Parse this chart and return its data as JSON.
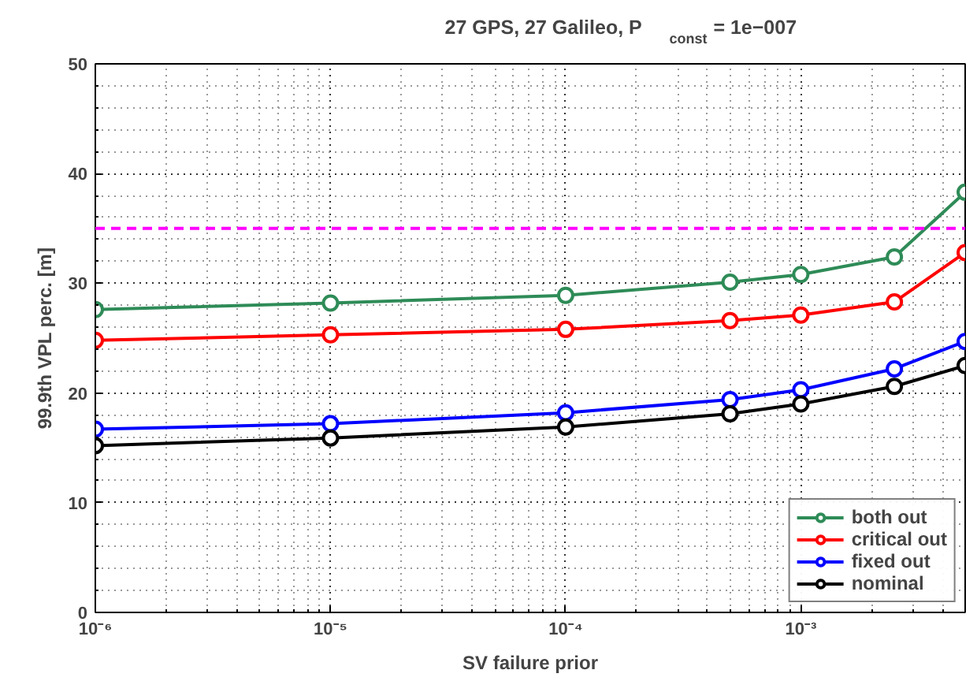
{
  "chart_data": {
    "type": "line",
    "title": "27 GPS, 27 Galileo,  P$_{const}$= 1e−007",
    "xlabel": "SV failure prior",
    "ylabel": "99.9th VPL perc. [m]",
    "x": [
      1e-06,
      1e-05,
      0.0001,
      0.0005,
      0.001,
      0.0025,
      0.005
    ],
    "series": [
      {
        "name": "both out",
        "color": "#2e8b57",
        "values": [
          27.6,
          28.2,
          28.9,
          30.1,
          30.8,
          32.4,
          38.3
        ]
      },
      {
        "name": "critical out",
        "color": "#ff0000",
        "values": [
          24.8,
          25.3,
          25.8,
          26.6,
          27.1,
          28.3,
          32.8
        ]
      },
      {
        "name": "fixed out",
        "color": "#0000ff",
        "values": [
          16.7,
          17.2,
          18.2,
          19.4,
          20.3,
          22.2,
          24.7
        ]
      },
      {
        "name": "nominal",
        "color": "#000000",
        "values": [
          15.2,
          15.9,
          16.9,
          18.1,
          19.0,
          20.6,
          22.5
        ]
      }
    ],
    "log": "x",
    "xlim": [
      1e-06,
      0.005
    ],
    "xticks": [
      {
        "value": 1e-06,
        "label": "10⁻⁶"
      },
      {
        "value": 1e-05,
        "label": "10⁻⁵"
      },
      {
        "value": 0.0001,
        "label": "10⁻⁴"
      },
      {
        "value": 0.001,
        "label": "10⁻³"
      }
    ],
    "ylim": [
      0,
      50
    ],
    "yticks": [
      0,
      10,
      20,
      30,
      40,
      50
    ],
    "ref_lines": [
      {
        "axis": "y",
        "value": 35,
        "color": "#ff00ff",
        "line_style": "dashed"
      }
    ],
    "grid": true,
    "legend": "bottom right",
    "marker": "circle",
    "line_style": "solid"
  }
}
